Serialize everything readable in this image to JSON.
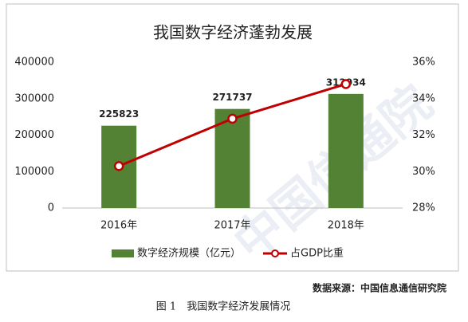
{
  "chart_data": {
    "type": "bar",
    "title": "我国数字经济蓬勃发展",
    "categories": [
      "2016年",
      "2017年",
      "2018年"
    ],
    "series": [
      {
        "name": "数字经济规模（亿元）",
        "color": "#548235",
        "values": [
          225823,
          271737,
          312934
        ]
      },
      {
        "name": "占GDP比重",
        "color": "#c00000",
        "values": [
          30.3,
          32.9,
          34.8
        ],
        "axis": "y2",
        "type": "line"
      }
    ],
    "ylim": [
      0,
      400000
    ],
    "yticks": [
      0,
      100000,
      200000,
      300000,
      400000
    ],
    "y2lim": [
      28,
      36
    ],
    "y2ticks": [
      {
        "value": 28,
        "label": "28%"
      },
      {
        "value": 30,
        "label": "30%"
      },
      {
        "value": 32,
        "label": "32%"
      },
      {
        "value": 34,
        "label": "34%"
      },
      {
        "value": 36,
        "label": "36%"
      }
    ],
    "legend": "bottom",
    "grid": false
  },
  "watermark": "中国信通院",
  "source": "数据来源：中国信息通信研究院",
  "caption": "图 1　我国数字经济发展情况"
}
